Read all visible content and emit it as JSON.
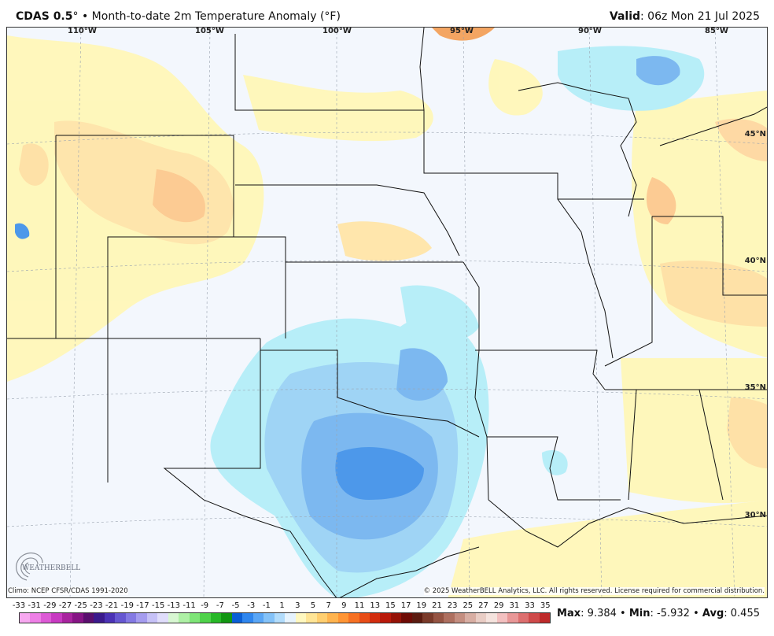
{
  "header": {
    "product": "CDAS 0.5",
    "product_suffix": "°",
    "bullet": "•",
    "description": "Month-to-date 2m Temperature Anomaly (°F)",
    "valid_label": "Valid",
    "valid_value": ": 06z Mon 21 Jul 2025"
  },
  "map": {
    "longitude_labels": [
      "110°W",
      "105°W",
      "100°W",
      "95°W",
      "90°W",
      "85°W"
    ],
    "latitude_labels": [
      "45°N",
      "40°N",
      "35°N",
      "30°N"
    ]
  },
  "footer": {
    "climo": "Climo: NCEP CFSR/CDAS 1991-2020",
    "copyright": "© 2025 WeatherBELL Analytics, LLC. All rights reserved. License required for commercial distribution.",
    "logo_text": "WEATHERBELL"
  },
  "colorbar": {
    "ticks": [
      "-33",
      "-31",
      "-29",
      "-27",
      "-25",
      "-23",
      "-21",
      "-19",
      "-17",
      "-15",
      "-13",
      "-11",
      "-9",
      "-7",
      "-5",
      "-3",
      "-1",
      "1",
      "3",
      "5",
      "7",
      "9",
      "11",
      "13",
      "15",
      "17",
      "19",
      "21",
      "23",
      "25",
      "27",
      "29",
      "31",
      "33",
      "35"
    ],
    "colors": [
      "#f7a8f0",
      "#ee7fe6",
      "#dd5ad6",
      "#c83ac2",
      "#a8249f",
      "#861585",
      "#5a0f6e",
      "#3b1a8c",
      "#4b32b5",
      "#6657d1",
      "#8479e3",
      "#a59cef",
      "#c6c1f7",
      "#e0ddfb",
      "#d8f7d2",
      "#aef0a5",
      "#7ee477",
      "#4fd24a",
      "#27b827",
      "#129612",
      "#0a5fd6",
      "#2f86ee",
      "#5aa6f5",
      "#84c2f8",
      "#b2dcfb",
      "#e6f3fd",
      "#fff8c0",
      "#ffe596",
      "#ffcf70",
      "#ffb44f",
      "#ff9535",
      "#f77123",
      "#e84d17",
      "#d32d0e",
      "#b9190a",
      "#951207",
      "#6e0b05",
      "#5b1b10",
      "#7a3a2a",
      "#955443",
      "#ae7060",
      "#c48e80",
      "#d8aea3",
      "#e9cdc5",
      "#f5e3de",
      "#f3c0c0",
      "#e89797",
      "#dd6f6f",
      "#cf4a4a",
      "#be2a2a"
    ]
  },
  "stats": {
    "max_label": "Max",
    "max_value": ": 9.384",
    "min_label": "Min",
    "min_value": ": -5.932",
    "avg_label": "Avg",
    "avg_value": ": 0.455",
    "separator": "•"
  }
}
